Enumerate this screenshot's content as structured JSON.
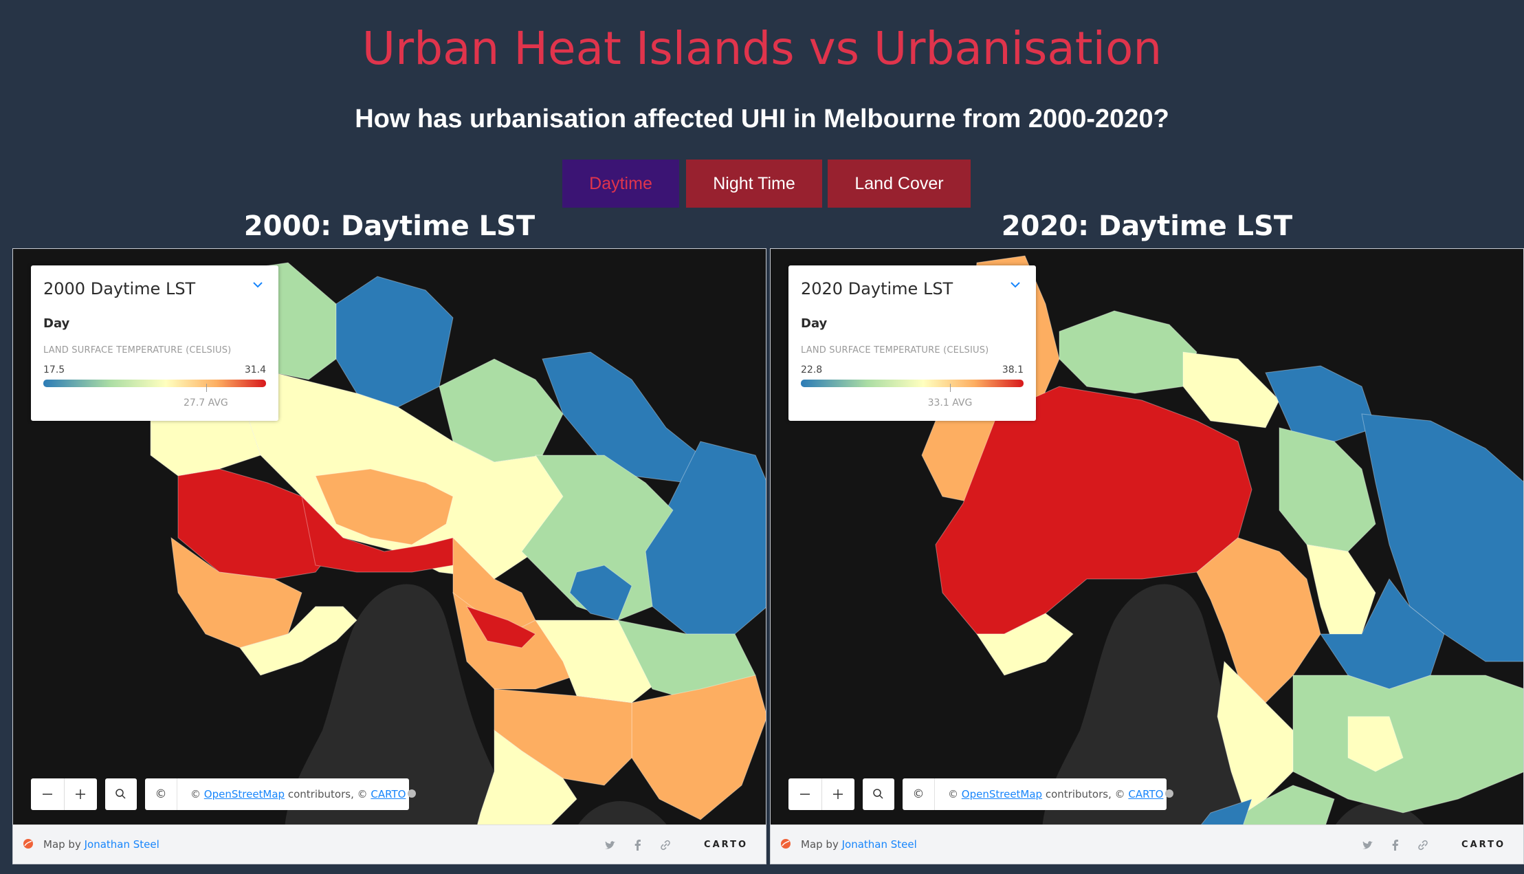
{
  "page": {
    "title": "Urban Heat Islands vs Urbanisation",
    "subtitle": "How has urbanisation affected UHI in Melbourne from 2000-2020?"
  },
  "tabs": [
    {
      "label": "Daytime",
      "active": true
    },
    {
      "label": "Night Time",
      "active": false
    },
    {
      "label": "Land Cover",
      "active": false
    }
  ],
  "colors": {
    "active_tab_bg": "#3b1474",
    "active_tab_text": "#e0344c",
    "inactive_tab_bg": "#98212f",
    "title": "#e0344c",
    "class_blue": "#2c7bb6",
    "class_green": "#abdda4",
    "class_yellow": "#ffffbf",
    "class_orange": "#fdae61",
    "class_red": "#d7191c"
  },
  "maps": [
    {
      "heading": "2000: Daytime LST",
      "legend": {
        "title": "2000 Daytime LST",
        "subtitle": "Day",
        "caption": "LAND SURFACE TEMPERATURE (CELSIUS)",
        "min": "17.5",
        "max": "31.4",
        "avg_label": "27.7 AVG",
        "avg_fraction": 0.73
      },
      "attribution": {
        "copyright": "©",
        "prefix": "© ",
        "osm": "OpenStreetMap",
        "middle": " contributors, © ",
        "carto": "CARTO"
      },
      "footer": {
        "map_by": "Map by ",
        "author": "Jonathan Steel",
        "brand": "CARTO"
      }
    },
    {
      "heading": "2020: Daytime LST",
      "legend": {
        "title": "2020 Daytime LST",
        "subtitle": "Day",
        "caption": "LAND SURFACE TEMPERATURE (CELSIUS)",
        "min": "22.8",
        "max": "38.1",
        "avg_label": "33.1 AVG",
        "avg_fraction": 0.67
      },
      "attribution": {
        "copyright": "©",
        "prefix": "© ",
        "osm": "OpenStreetMap",
        "middle": " contributors, © ",
        "carto": "CARTO"
      },
      "footer": {
        "map_by": "Map by ",
        "author": "Jonathan Steel",
        "brand": "CARTO"
      }
    }
  ],
  "icons": {
    "collapse": "chevron-down-icon",
    "zoom_out": "minus-icon",
    "zoom_in": "plus-icon",
    "search": "search-icon",
    "twitter": "twitter-icon",
    "facebook": "facebook-icon",
    "link": "link-icon"
  }
}
